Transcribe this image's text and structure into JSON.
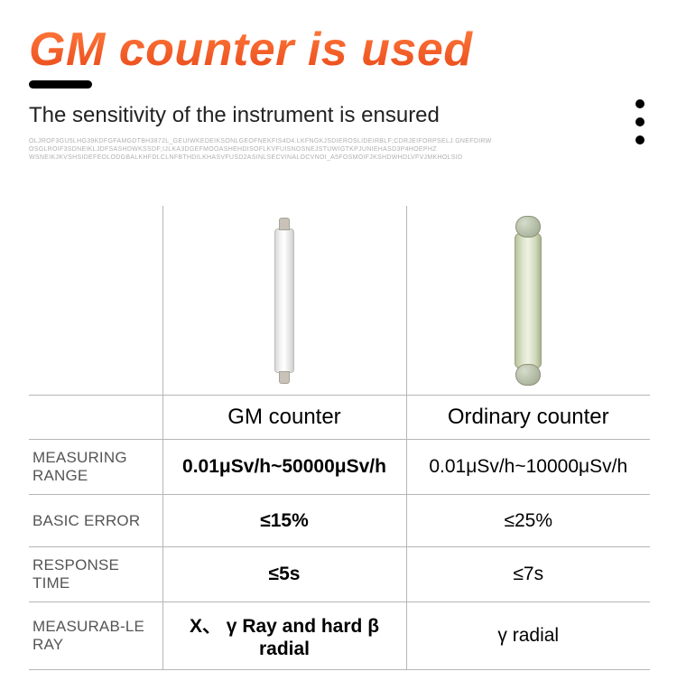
{
  "title": "GM counter is used",
  "subtitle": "The sensitivity of the instrument is ensured",
  "filler_lines": [
    "OLJROF3GU5LHG39KDFGFAMGDTBH3872L_GEUIWKEDEIKSONLGEOFNEKFIS4D4.LKFNGKJSDIEROSLIDEIRBLF;CDRJEIFORPSELJ.GNEFDIRW",
    "OSGLROIF3SDNEIKLJDFSASHDWKSSDF;IJLKA3DGEFMOOASHEHDISOFLKVFUISNOSNEJSTUWIGTKPJUNIEHASD3P4HOEPHZ",
    "WSNEIKJKVSHSIDEFEOLODGBALKHFDLCLNFBTHDILKHASVFUSD2ASINLSECVINALOCVNOI_A5FOSMOIFJKSHDWHDLVFVJMKHOLSID"
  ],
  "headers": {
    "gm": "GM counter",
    "ordinary": "Ordinary counter"
  },
  "rows": [
    {
      "label": "MEASURING RANGE",
      "gm": "0.01μSv/h~50000μSv/h",
      "ord": "0.01μSv/h~10000μSv/h"
    },
    {
      "label": "BASIC ERROR",
      "gm": "≤15%",
      "ord": "≤25%"
    },
    {
      "label": "RESPONSE TIME",
      "gm": "≤5s",
      "ord": "≤7s"
    },
    {
      "label": "MEASURAB-LE RAY",
      "gm": "X、 γ Ray and hard β radial",
      "ord": "γ radial"
    }
  ],
  "colors": {
    "accent": "#ec5a1f",
    "title_gradient_top": "#ff7a3c",
    "title_gradient_bottom": "#e8491a",
    "border": "#b6b6b6",
    "label_text": "#555555",
    "background": "#ffffff"
  }
}
